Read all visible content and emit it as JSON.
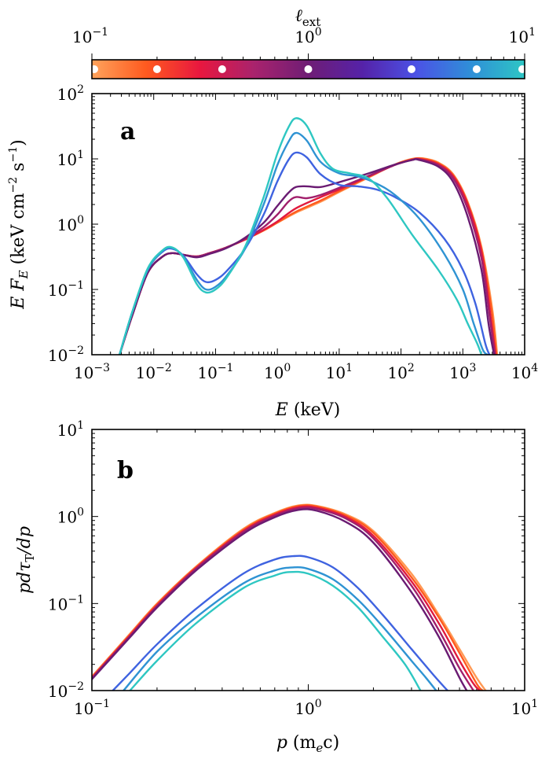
{
  "colorbar": {
    "label": "ℓ_ext",
    "tick_labels": [
      {
        "value": 0.1,
        "base": "10",
        "exp": "−1"
      },
      {
        "value": 1,
        "base": "10",
        "exp": "0"
      },
      {
        "value": 10,
        "base": "10",
        "exp": "1"
      }
    ],
    "range": [
      0.1,
      10
    ],
    "gradient_stops": [
      "#ffa35c",
      "#ff5a1f",
      "#e8173f",
      "#a9236d",
      "#6f1d75",
      "#5522a8",
      "#4b52e6",
      "#2f8fd8",
      "#2ec6c4"
    ],
    "markers": [
      0.1,
      0.2,
      0.4,
      1.0,
      3.0,
      6.0,
      10.0
    ]
  },
  "chart_data": [
    {
      "type": "line",
      "panel_label": "a",
      "xscale": "log",
      "yscale": "log",
      "xlim": [
        0.001,
        10000
      ],
      "ylim": [
        0.01,
        100
      ],
      "xlabel": {
        "main": "E",
        "rest": " (keV)"
      },
      "ylabel": {
        "text": "E F",
        "sub": "E",
        "units": " (keV cm",
        "exp1": "−2",
        "mid": " s",
        "exp2": "−1",
        "close": ")"
      },
      "xticks": [
        {
          "value": 0.001,
          "base": "10",
          "exp": "−3"
        },
        {
          "value": 0.01,
          "base": "10",
          "exp": "−2"
        },
        {
          "value": 0.1,
          "base": "10",
          "exp": "−1"
        },
        {
          "value": 1,
          "base": "10",
          "exp": "0"
        },
        {
          "value": 10,
          "base": "10",
          "exp": "1"
        },
        {
          "value": 100,
          "base": "10",
          "exp": "2"
        },
        {
          "value": 1000,
          "base": "10",
          "exp": "3"
        },
        {
          "value": 10000,
          "base": "10",
          "exp": "4"
        }
      ],
      "yticks": [
        {
          "value": 0.01,
          "base": "10",
          "exp": "−2"
        },
        {
          "value": 0.1,
          "base": "10",
          "exp": "−1"
        },
        {
          "value": 1,
          "base": "10",
          "exp": "0"
        },
        {
          "value": 10,
          "base": "10",
          "exp": "1"
        },
        {
          "value": 100,
          "base": "10",
          "exp": "2"
        }
      ],
      "series": [
        {
          "name": "l_ext=0.1",
          "color": "#ff9a55",
          "x": [
            0.0028,
            0.0045,
            0.008,
            0.014,
            0.02,
            0.03,
            0.05,
            0.08,
            0.15,
            0.3,
            0.6,
            1.0,
            2.0,
            5.0,
            10,
            30,
            80,
            150,
            230,
            400,
            700,
            1200,
            2000,
            3000,
            3600
          ],
          "y": [
            0.01,
            0.04,
            0.18,
            0.32,
            0.36,
            0.34,
            0.32,
            0.36,
            0.44,
            0.58,
            0.8,
            1.05,
            1.5,
            2.2,
            3.1,
            5.2,
            8.2,
            10.0,
            10.2,
            8.8,
            5.8,
            2.2,
            0.45,
            0.05,
            0.01
          ]
        },
        {
          "name": "l_ext=0.2",
          "color": "#ff5a1f",
          "x": [
            0.0028,
            0.0045,
            0.008,
            0.014,
            0.02,
            0.03,
            0.05,
            0.08,
            0.15,
            0.3,
            0.6,
            1.0,
            2.0,
            5.0,
            10,
            30,
            80,
            150,
            220,
            400,
            700,
            1200,
            2000,
            2900,
            3500
          ],
          "y": [
            0.01,
            0.04,
            0.18,
            0.32,
            0.36,
            0.34,
            0.32,
            0.36,
            0.44,
            0.58,
            0.8,
            1.06,
            1.55,
            2.3,
            3.2,
            5.3,
            8.2,
            9.9,
            10.1,
            8.6,
            5.6,
            2.1,
            0.42,
            0.05,
            0.01
          ]
        },
        {
          "name": "l_ext=0.4",
          "color": "#e11a3e",
          "x": [
            0.0028,
            0.0045,
            0.008,
            0.014,
            0.02,
            0.03,
            0.05,
            0.08,
            0.15,
            0.3,
            0.6,
            1.0,
            2.0,
            5.0,
            10,
            30,
            80,
            150,
            210,
            400,
            700,
            1200,
            2000,
            2800,
            3400
          ],
          "y": [
            0.01,
            0.04,
            0.18,
            0.32,
            0.36,
            0.34,
            0.32,
            0.36,
            0.44,
            0.58,
            0.82,
            1.1,
            1.75,
            2.6,
            3.4,
            5.4,
            8.1,
            9.7,
            9.9,
            8.3,
            5.4,
            2.0,
            0.38,
            0.04,
            0.01
          ]
        },
        {
          "name": "l_ext=1.0",
          "color": "#a11f6c",
          "x": [
            0.0028,
            0.0045,
            0.008,
            0.014,
            0.02,
            0.03,
            0.05,
            0.08,
            0.15,
            0.3,
            0.6,
            1.0,
            1.5,
            2.0,
            3.0,
            5.0,
            10,
            30,
            80,
            150,
            200,
            400,
            700,
            1200,
            2000,
            2700,
            3300
          ],
          "y": [
            0.01,
            0.04,
            0.18,
            0.32,
            0.36,
            0.34,
            0.32,
            0.36,
            0.44,
            0.6,
            0.9,
            1.4,
            2.2,
            2.6,
            2.5,
            2.8,
            3.6,
            5.5,
            8.1,
            9.6,
            9.8,
            8.0,
            5.0,
            1.7,
            0.3,
            0.04,
            0.01
          ]
        },
        {
          "name": "l_ext=3.0",
          "color": "#6a1b72",
          "x": [
            0.0028,
            0.0045,
            0.008,
            0.014,
            0.02,
            0.03,
            0.05,
            0.08,
            0.15,
            0.3,
            0.6,
            1.0,
            1.5,
            2.0,
            3.0,
            5.0,
            10,
            30,
            80,
            150,
            190,
            400,
            700,
            1200,
            2000,
            2600,
            3200
          ],
          "y": [
            0.01,
            0.04,
            0.18,
            0.32,
            0.36,
            0.34,
            0.31,
            0.35,
            0.43,
            0.62,
            1.05,
            1.9,
            3.0,
            3.7,
            3.8,
            3.7,
            4.4,
            6.0,
            8.2,
            9.6,
            9.7,
            7.6,
            4.4,
            1.3,
            0.2,
            0.03,
            0.01
          ]
        },
        {
          "name": "l_ext=6.0",
          "color": "#3f63e0",
          "x": [
            0.0028,
            0.0045,
            0.008,
            0.014,
            0.02,
            0.03,
            0.05,
            0.07,
            0.1,
            0.15,
            0.3,
            0.6,
            1.0,
            1.5,
            2.0,
            3.0,
            5.0,
            10,
            20,
            40,
            80,
            200,
            500,
            1000,
            1600,
            2300,
            2700
          ],
          "y": [
            0.01,
            0.045,
            0.2,
            0.38,
            0.42,
            0.33,
            0.17,
            0.13,
            0.14,
            0.19,
            0.42,
            1.4,
            4.5,
            9.5,
            12.5,
            10.5,
            5.8,
            4.0,
            3.8,
            3.4,
            2.6,
            1.5,
            0.6,
            0.2,
            0.06,
            0.015,
            0.01
          ]
        },
        {
          "name": "l_ext=8.0",
          "color": "#2f93d3",
          "x": [
            0.0028,
            0.0045,
            0.008,
            0.014,
            0.02,
            0.03,
            0.05,
            0.07,
            0.1,
            0.15,
            0.3,
            0.6,
            1.0,
            1.5,
            2.0,
            3.0,
            5.0,
            10,
            20,
            40,
            80,
            200,
            500,
            1000,
            1500,
            2100,
            2500
          ],
          "y": [
            0.01,
            0.045,
            0.2,
            0.39,
            0.43,
            0.32,
            0.14,
            0.1,
            0.11,
            0.16,
            0.42,
            2.0,
            8.0,
            18.0,
            25.0,
            19.0,
            9.0,
            6.0,
            5.4,
            4.2,
            2.8,
            1.2,
            0.35,
            0.1,
            0.03,
            0.012,
            0.01
          ]
        },
        {
          "name": "l_ext=10",
          "color": "#2ec7c2",
          "x": [
            0.0028,
            0.0045,
            0.008,
            0.014,
            0.02,
            0.03,
            0.05,
            0.07,
            0.1,
            0.15,
            0.3,
            0.6,
            1.0,
            1.5,
            2.0,
            3.0,
            5.0,
            8.0,
            15,
            30,
            60,
            150,
            400,
            800,
            1200,
            1700,
            2000
          ],
          "y": [
            0.01,
            0.045,
            0.21,
            0.4,
            0.44,
            0.31,
            0.12,
            0.09,
            0.1,
            0.15,
            0.45,
            2.6,
            12.0,
            30.0,
            42.0,
            32.0,
            12.0,
            7.0,
            6.0,
            5.0,
            2.5,
            0.7,
            0.2,
            0.07,
            0.03,
            0.015,
            0.01
          ]
        }
      ]
    },
    {
      "type": "line",
      "panel_label": "b",
      "xscale": "log",
      "yscale": "log",
      "xlim": [
        0.1,
        10
      ],
      "ylim": [
        0.01,
        10
      ],
      "xlabel": {
        "main": "p",
        "rest": " (m",
        "sub": "e",
        "end": "c)"
      },
      "ylabel": {
        "text": "pdτ",
        "sub": "T",
        "tail": "/dp"
      },
      "xticks": [
        {
          "value": 0.1,
          "base": "10",
          "exp": "−1"
        },
        {
          "value": 1,
          "base": "10",
          "exp": "0"
        },
        {
          "value": 10,
          "base": "10",
          "exp": "1"
        }
      ],
      "yticks": [
        {
          "value": 0.01,
          "base": "10",
          "exp": "−2"
        },
        {
          "value": 0.1,
          "base": "10",
          "exp": "−1"
        },
        {
          "value": 1,
          "base": "10",
          "exp": "0"
        },
        {
          "value": 10,
          "base": "10",
          "exp": "1"
        }
      ],
      "series": [
        {
          "name": "l_ext=0.1",
          "color": "#ff9a55",
          "x": [
            0.1,
            0.15,
            0.2,
            0.3,
            0.5,
            0.7,
            0.9,
            1.1,
            1.5,
            2.0,
            3.0,
            4.0,
            5.0,
            6.0,
            6.6
          ],
          "y": [
            0.0145,
            0.045,
            0.1,
            0.26,
            0.72,
            1.1,
            1.34,
            1.32,
            1.05,
            0.68,
            0.22,
            0.075,
            0.03,
            0.014,
            0.01
          ]
        },
        {
          "name": "l_ext=0.2",
          "color": "#ff5a1f",
          "x": [
            0.1,
            0.15,
            0.2,
            0.3,
            0.5,
            0.7,
            0.9,
            1.1,
            1.5,
            2.0,
            3.0,
            4.0,
            5.0,
            6.0,
            6.4
          ],
          "y": [
            0.0142,
            0.044,
            0.098,
            0.255,
            0.7,
            1.08,
            1.32,
            1.3,
            1.02,
            0.65,
            0.2,
            0.07,
            0.027,
            0.012,
            0.01
          ]
        },
        {
          "name": "l_ext=0.4",
          "color": "#e11a3e",
          "x": [
            0.1,
            0.15,
            0.2,
            0.3,
            0.5,
            0.7,
            0.9,
            1.1,
            1.5,
            2.0,
            3.0,
            4.0,
            5.0,
            5.8,
            6.2
          ],
          "y": [
            0.014,
            0.043,
            0.095,
            0.25,
            0.68,
            1.05,
            1.28,
            1.26,
            0.98,
            0.6,
            0.18,
            0.06,
            0.022,
            0.012,
            0.01
          ]
        },
        {
          "name": "l_ext=1.0",
          "color": "#a11f6c",
          "x": [
            0.1,
            0.15,
            0.2,
            0.3,
            0.5,
            0.7,
            0.9,
            1.1,
            1.5,
            2.0,
            3.0,
            4.0,
            5.0,
            5.8
          ],
          "y": [
            0.0138,
            0.042,
            0.093,
            0.245,
            0.66,
            1.02,
            1.24,
            1.22,
            0.94,
            0.56,
            0.16,
            0.05,
            0.018,
            0.01
          ]
        },
        {
          "name": "l_ext=3.0",
          "color": "#6a1b72",
          "x": [
            0.1,
            0.15,
            0.2,
            0.3,
            0.5,
            0.7,
            0.9,
            1.1,
            1.5,
            2.0,
            3.0,
            4.0,
            5.0,
            5.4
          ],
          "y": [
            0.0135,
            0.041,
            0.09,
            0.235,
            0.63,
            0.98,
            1.19,
            1.16,
            0.86,
            0.5,
            0.135,
            0.042,
            0.014,
            0.01
          ]
        },
        {
          "name": "l_ext=6.0",
          "color": "#3f63e0",
          "x": [
            0.125,
            0.15,
            0.2,
            0.3,
            0.5,
            0.7,
            0.85,
            1.0,
            1.3,
            1.7,
            2.2,
            3.0,
            3.8,
            4.4
          ],
          "y": [
            0.01,
            0.016,
            0.034,
            0.085,
            0.22,
            0.32,
            0.35,
            0.34,
            0.26,
            0.15,
            0.075,
            0.03,
            0.015,
            0.01
          ]
        },
        {
          "name": "l_ext=8.0",
          "color": "#2f93d3",
          "x": [
            0.14,
            0.2,
            0.3,
            0.5,
            0.7,
            0.85,
            1.0,
            1.3,
            1.7,
            2.2,
            3.0,
            3.5,
            3.9
          ],
          "y": [
            0.01,
            0.028,
            0.068,
            0.17,
            0.24,
            0.26,
            0.25,
            0.19,
            0.11,
            0.055,
            0.022,
            0.014,
            0.01
          ]
        },
        {
          "name": "l_ext=10",
          "color": "#2ec7c2",
          "x": [
            0.15,
            0.2,
            0.3,
            0.5,
            0.7,
            0.82,
            1.0,
            1.3,
            1.7,
            2.2,
            2.8,
            3.3
          ],
          "y": [
            0.01,
            0.022,
            0.058,
            0.15,
            0.21,
            0.23,
            0.22,
            0.16,
            0.09,
            0.042,
            0.02,
            0.01
          ]
        }
      ]
    }
  ]
}
